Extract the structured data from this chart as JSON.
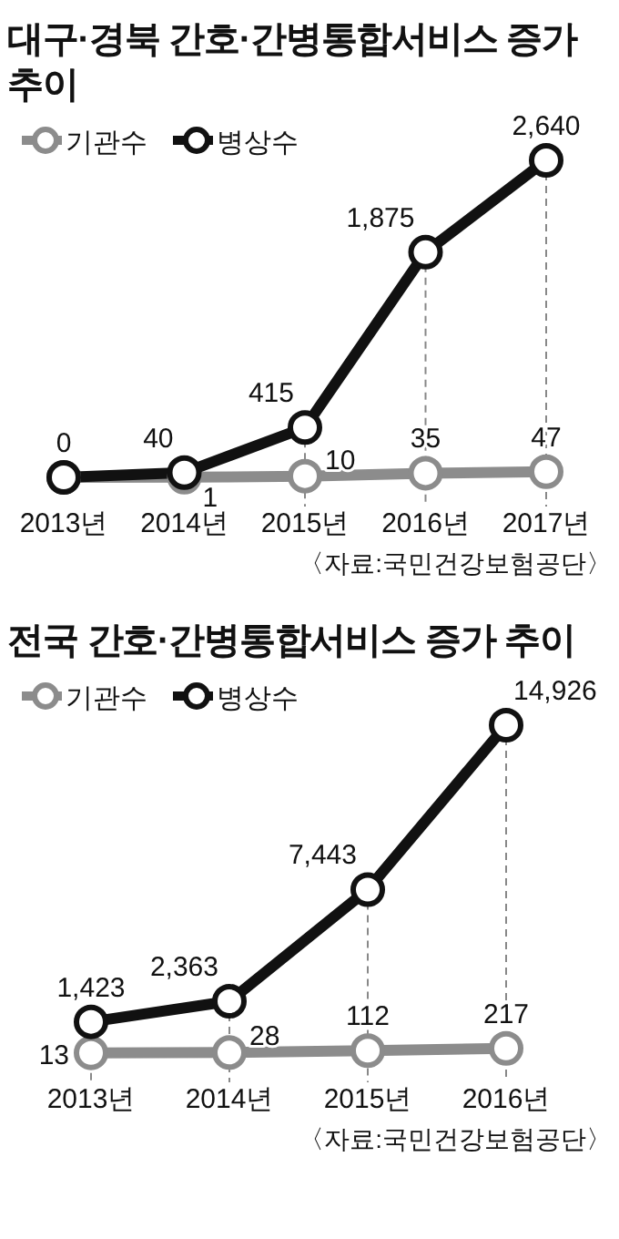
{
  "chart_data": [
    {
      "type": "line",
      "title": "대구·경북 간호·간병통합서비스 증가 추이",
      "categories": [
        "2013년",
        "2014년",
        "2015년",
        "2016년",
        "2017년"
      ],
      "series": [
        {
          "name": "기관수",
          "color": "#8c8c8c",
          "values": [
            0,
            1,
            10,
            35,
            47
          ],
          "value_labels": [
            null,
            "1",
            "10",
            "35",
            "47"
          ]
        },
        {
          "name": "병상수",
          "color": "#111111",
          "values": [
            0,
            40,
            415,
            1875,
            2640
          ],
          "value_labels": [
            "0",
            "40",
            "415",
            "1,875",
            "2,640"
          ]
        }
      ],
      "ref_lines": [
        {
          "axis": "x",
          "value": "2015년",
          "line_style": "dashed",
          "color": "#888888"
        },
        {
          "axis": "x",
          "value": "2016년",
          "line_style": "dashed",
          "color": "#888888"
        },
        {
          "axis": "x",
          "value": "2017년",
          "line_style": "dashed",
          "color": "#888888"
        }
      ],
      "marker": "circle",
      "legend": "top left",
      "annotations": [
        "〈자료:국민건강보험공단〉"
      ]
    },
    {
      "type": "line",
      "title": "전국 간호·간병통합서비스 증가 추이",
      "categories": [
        "2013년",
        "2014년",
        "2015년",
        "2016년"
      ],
      "series": [
        {
          "name": "기관수",
          "color": "#8c8c8c",
          "values": [
            13,
            28,
            112,
            217
          ],
          "value_labels": [
            "13",
            "28",
            "112",
            "217"
          ]
        },
        {
          "name": "병상수",
          "color": "#111111",
          "values": [
            1423,
            2363,
            7443,
            14926
          ],
          "value_labels": [
            "1,423",
            "2,363",
            "7,443",
            "14,926"
          ]
        }
      ],
      "ref_lines": [
        {
          "axis": "x",
          "value": "2013년",
          "line_style": "dashed",
          "color": "#888888"
        },
        {
          "axis": "x",
          "value": "2014년",
          "line_style": "dashed",
          "color": "#888888"
        },
        {
          "axis": "x",
          "value": "2015년",
          "line_style": "dashed",
          "color": "#888888"
        },
        {
          "axis": "x",
          "value": "2016년",
          "line_style": "dashed",
          "color": "#888888"
        }
      ],
      "marker": "circle",
      "legend": "top left",
      "annotations": [
        "〈자료:국민건강보험공단〉"
      ]
    }
  ]
}
